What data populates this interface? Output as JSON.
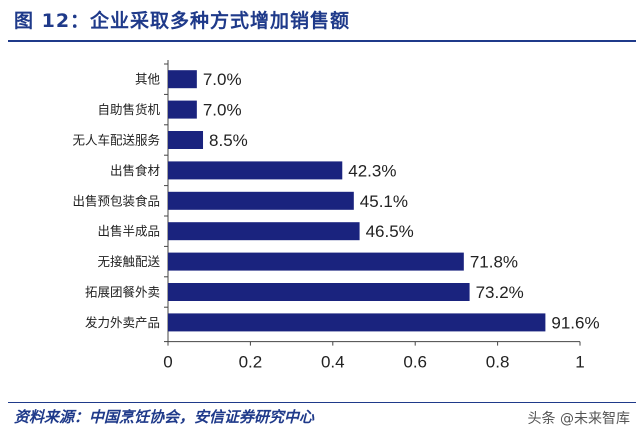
{
  "header": {
    "title": "图 12：企业采取多种方式增加销售额"
  },
  "footer": {
    "source": "资料来源：中国烹饪协会，安信证券研究中心",
    "watermark": "头条 @未来智库"
  },
  "colors": {
    "bar": "#1a237e",
    "accent": "#1f3a8a",
    "text": "#222222"
  },
  "chart_data": {
    "type": "bar",
    "orientation": "horizontal",
    "categories": [
      "其他",
      "自助售货机",
      "无人车配送服务",
      "出售食材",
      "出售预包装食品",
      "出售半成品",
      "无接触配送",
      "拓展团餐外卖",
      "发力外卖产品"
    ],
    "values": [
      0.07,
      0.07,
      0.085,
      0.423,
      0.451,
      0.465,
      0.718,
      0.732,
      0.916
    ],
    "data_labels": [
      "7.0%",
      "7.0%",
      "8.5%",
      "42.3%",
      "45.1%",
      "46.5%",
      "71.8%",
      "73.2%",
      "91.6%"
    ],
    "xlim": [
      0,
      1
    ],
    "xticks": [
      0,
      0.2,
      0.4,
      0.6,
      0.8,
      1
    ],
    "xtick_labels": [
      "0",
      "0.2",
      "0.4",
      "0.6",
      "0.8",
      "1"
    ],
    "grid": false,
    "legend": "none",
    "title": "",
    "xlabel": "",
    "ylabel": ""
  }
}
